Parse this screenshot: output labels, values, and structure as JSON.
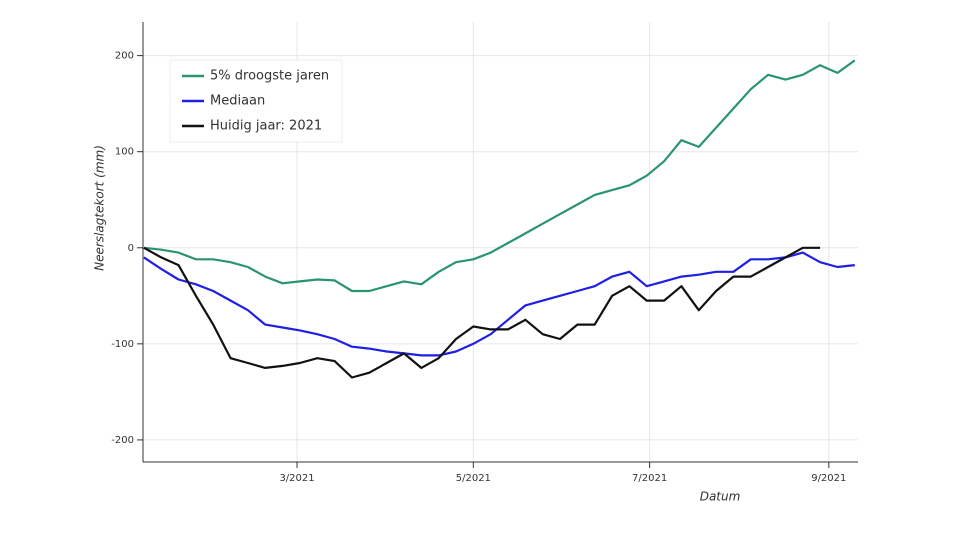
{
  "chart_data": {
    "type": "line",
    "y_label": "Neerslagtekort (mm)",
    "x_label": "Datum",
    "x": [
      6,
      12,
      18,
      24,
      30,
      36,
      42,
      48,
      54,
      60,
      66,
      72,
      78,
      84,
      90,
      96,
      102,
      108,
      114,
      120,
      126,
      132,
      138,
      144,
      150,
      156,
      162,
      168,
      174,
      180,
      186,
      192,
      198,
      204,
      210,
      216,
      222,
      228,
      234,
      240,
      246,
      252
    ],
    "series": [
      {
        "name": "5% droogste jaren",
        "color": "#2a9470",
        "values": [
          0,
          -2,
          -5,
          -12,
          -12,
          -15,
          -20,
          -30,
          -37,
          -35,
          -33,
          -34,
          -45,
          -45,
          -40,
          -35,
          -38,
          -25,
          -15,
          -12,
          -5,
          5,
          15,
          25,
          35,
          45,
          55,
          60,
          65,
          75,
          90,
          112,
          105,
          125,
          145,
          165,
          180,
          175,
          180,
          190,
          182,
          195
        ]
      },
      {
        "name": "Mediaan",
        "color": "#1f1fe6",
        "values": [
          -10,
          -22,
          -33,
          -38,
          -45,
          -55,
          -65,
          -80,
          -83,
          -86,
          -90,
          -95,
          -103,
          -105,
          -108,
          -110,
          -112,
          -112,
          -108,
          -100,
          -90,
          -75,
          -60,
          -55,
          -50,
          -45,
          -40,
          -30,
          -25,
          -40,
          -35,
          -30,
          -28,
          -25,
          -25,
          -12,
          -12,
          -10,
          -5,
          -15,
          -20,
          -18
        ]
      },
      {
        "name": "Huidig jaar: 2021",
        "color": "#111111",
        "values": [
          0,
          -10,
          -18,
          -50,
          -80,
          -115,
          -120,
          -125,
          -123,
          -120,
          -115,
          -118,
          -135,
          -130,
          -120,
          -110,
          -125,
          -115,
          -95,
          -82,
          -85,
          -85,
          -75,
          -90,
          -95,
          -80,
          -80,
          -50,
          -40,
          -55,
          -55,
          -40,
          -65,
          -45,
          -30,
          -30,
          -20,
          -10,
          0,
          0,
          null,
          null
        ]
      }
    ],
    "xlim": [
      5.7,
      253.1
    ],
    "xticks": [
      {
        "value": 59,
        "label": "3/2021"
      },
      {
        "value": 120,
        "label": "5/2021"
      },
      {
        "value": 181,
        "label": "7/2021"
      },
      {
        "value": 243,
        "label": "9/2021"
      }
    ],
    "ylim": [
      -223,
      235
    ],
    "yticks": [
      200,
      100,
      0,
      -100,
      -200
    ],
    "grid": true
  }
}
